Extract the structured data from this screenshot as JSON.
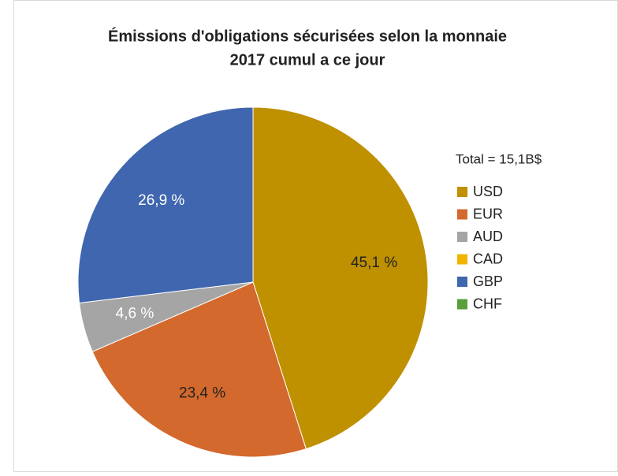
{
  "chart_data": {
    "type": "pie",
    "title": "Émissions d'obligations sécurisées selon la monnaie",
    "subtitle": "2017 cumul a ce jour",
    "annotation": "Total = 15,1B$",
    "categories": [
      "USD",
      "EUR",
      "AUD",
      "CAD",
      "GBP",
      "CHF"
    ],
    "values": [
      45.1,
      23.4,
      4.6,
      0,
      26.9,
      0
    ],
    "value_labels": [
      "45,1 %",
      "23,4 %",
      "4,6 %",
      null,
      "26,9 %",
      null
    ],
    "colors": [
      "#bf9000",
      "#d3692c",
      "#a5a5a5",
      "#f0b400",
      "#3f66ae",
      "#5b9e3c"
    ],
    "legend": "right"
  }
}
